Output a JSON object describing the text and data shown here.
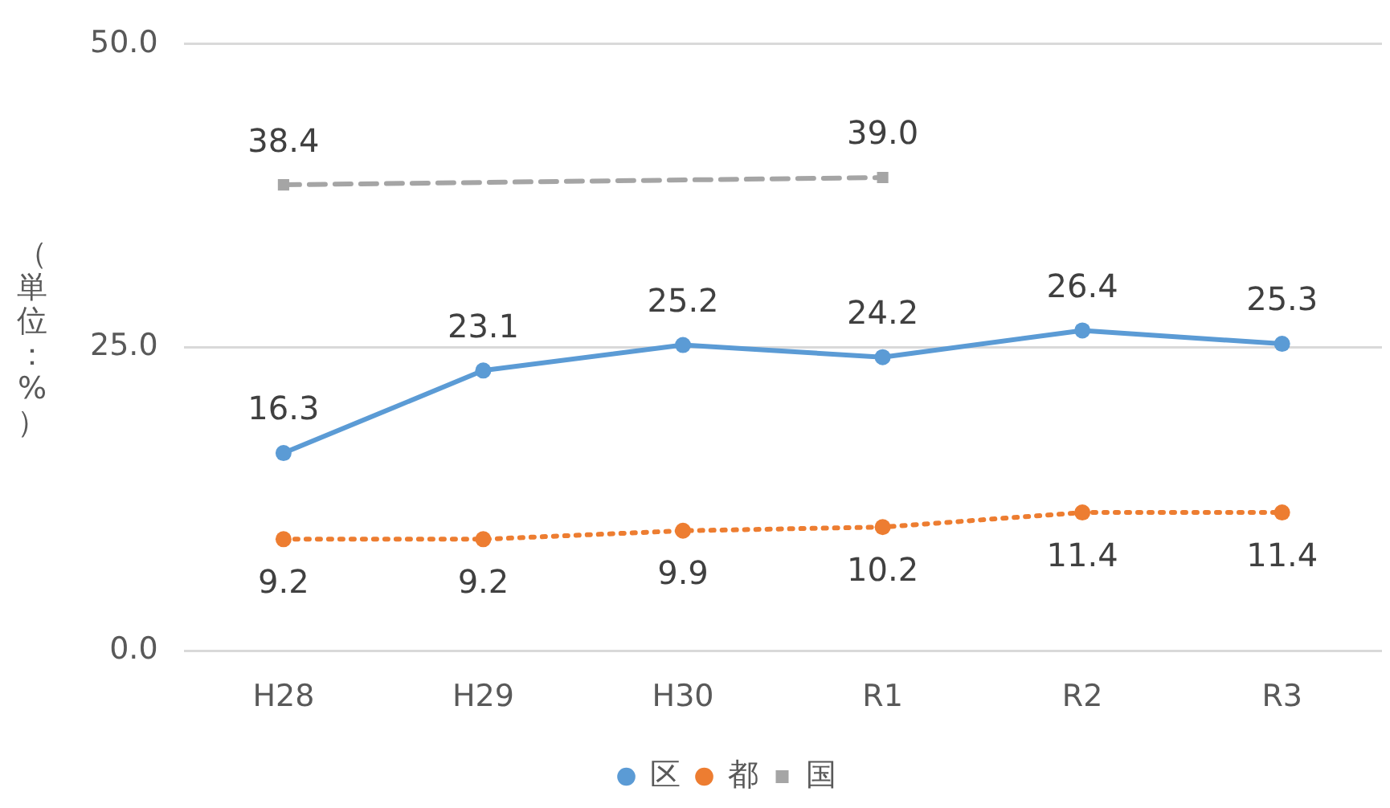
{
  "chart_data": {
    "type": "line",
    "ylabel": "（単位：%）",
    "categories": [
      "H28",
      "H29",
      "H30",
      "R1",
      "R2",
      "R3"
    ],
    "series": [
      {
        "name": "区",
        "color": "#5b9bd5",
        "values": [
          16.3,
          23.1,
          25.2,
          24.2,
          26.4,
          25.3
        ],
        "value_labels": [
          "16.3",
          "23.1",
          "25.2",
          "24.2",
          "26.4",
          "25.3"
        ],
        "marker": "circle",
        "line_style": "solid"
      },
      {
        "name": "都",
        "color": "#ed7d31",
        "values": [
          9.2,
          9.2,
          9.9,
          10.2,
          11.4,
          11.4
        ],
        "value_labels": [
          "9.2",
          "9.2",
          "9.9",
          "10.2",
          "11.4",
          "11.4"
        ],
        "marker": "circle",
        "line_style": "dotted"
      },
      {
        "name": "国",
        "color": "#a5a5a5",
        "values": [
          38.4,
          null,
          null,
          39.0,
          null,
          null
        ],
        "value_labels": [
          "38.4",
          null,
          null,
          "39.0",
          null,
          null
        ],
        "marker": "square",
        "line_style": "dashed"
      }
    ],
    "ylim": [
      0,
      50
    ],
    "yticks": [
      {
        "value": 0,
        "label": "0.0"
      },
      {
        "value": 25,
        "label": "25.0"
      },
      {
        "value": 50,
        "label": "50.0"
      }
    ],
    "grid": "y",
    "legend": "bottom"
  }
}
